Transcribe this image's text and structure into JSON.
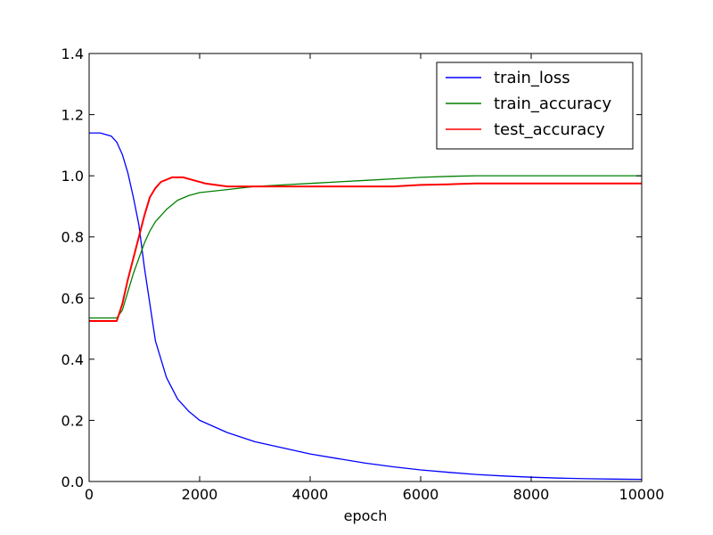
{
  "chart_data": {
    "type": "line",
    "title": "",
    "xlabel": "epoch",
    "ylabel": "",
    "xlim": [
      0,
      10000
    ],
    "ylim": [
      0.0,
      1.4
    ],
    "xticks": [
      0,
      2000,
      4000,
      6000,
      8000,
      10000
    ],
    "yticks": [
      0.0,
      0.2,
      0.4,
      0.6,
      0.8,
      1.0,
      1.2,
      1.4
    ],
    "xtick_labels": [
      "0",
      "2000",
      "4000",
      "6000",
      "8000",
      "10000"
    ],
    "ytick_labels": [
      "0.0",
      "0.2",
      "0.4",
      "0.6",
      "0.8",
      "1.0",
      "1.2",
      "1.4"
    ],
    "legend_position": "top-right",
    "series": [
      {
        "name": "train_loss",
        "color": "#0000ff",
        "x": [
          0,
          200,
          400,
          500,
          600,
          700,
          800,
          900,
          1000,
          1100,
          1200,
          1400,
          1600,
          1800,
          2000,
          2500,
          3000,
          3500,
          4000,
          4500,
          5000,
          5500,
          6000,
          6500,
          7000,
          7500,
          8000,
          8500,
          9000,
          9500,
          10000
        ],
        "values": [
          1.14,
          1.14,
          1.13,
          1.11,
          1.07,
          1.01,
          0.93,
          0.84,
          0.7,
          0.58,
          0.46,
          0.34,
          0.27,
          0.23,
          0.2,
          0.16,
          0.13,
          0.11,
          0.09,
          0.075,
          0.06,
          0.048,
          0.038,
          0.03,
          0.023,
          0.018,
          0.014,
          0.011,
          0.009,
          0.008,
          0.007
        ]
      },
      {
        "name": "train_accuracy",
        "color": "#008000",
        "x": [
          0,
          300,
          500,
          600,
          700,
          800,
          900,
          1000,
          1100,
          1200,
          1400,
          1600,
          1800,
          2000,
          2500,
          3000,
          3500,
          4000,
          4500,
          5000,
          5500,
          6000,
          6500,
          7000,
          7500,
          8000,
          9000,
          10000
        ],
        "values": [
          0.535,
          0.535,
          0.535,
          0.56,
          0.62,
          0.68,
          0.73,
          0.78,
          0.82,
          0.85,
          0.89,
          0.92,
          0.935,
          0.945,
          0.955,
          0.965,
          0.97,
          0.975,
          0.98,
          0.985,
          0.99,
          0.995,
          0.998,
          1.0,
          1.0,
          1.0,
          1.0,
          1.0
        ]
      },
      {
        "name": "test_accuracy",
        "color": "#ff0000",
        "x": [
          0,
          300,
          500,
          600,
          700,
          800,
          900,
          1000,
          1100,
          1200,
          1300,
          1500,
          1700,
          1900,
          2100,
          2500,
          3000,
          3500,
          4000,
          4500,
          5000,
          5500,
          6000,
          6500,
          7000,
          7500,
          8000,
          9000,
          10000
        ],
        "values": [
          0.525,
          0.525,
          0.525,
          0.58,
          0.66,
          0.73,
          0.8,
          0.87,
          0.93,
          0.96,
          0.98,
          0.995,
          0.995,
          0.985,
          0.975,
          0.965,
          0.965,
          0.965,
          0.965,
          0.965,
          0.965,
          0.965,
          0.97,
          0.972,
          0.975,
          0.975,
          0.975,
          0.975,
          0.975
        ]
      }
    ]
  }
}
